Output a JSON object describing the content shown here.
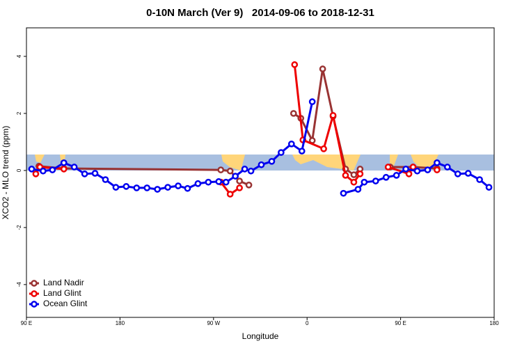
{
  "chart_data": {
    "type": "line",
    "title": "0-10N March (Ver 9)   2014-09-06 to 2018-12-31",
    "xlabel": "Longitude",
    "ylabel": "XCO2 - MLO trend (ppm)",
    "xlim": [
      90,
      540
    ],
    "xticks": [
      {
        "value": 90,
        "label": "90 E"
      },
      {
        "value": 180,
        "label": "180"
      },
      {
        "value": 270,
        "label": "90 W"
      },
      {
        "value": 360,
        "label": "0"
      },
      {
        "value": 450,
        "label": "90 E"
      },
      {
        "value": 540,
        "label": "180"
      }
    ],
    "ylim": [
      -5.15,
      5
    ],
    "yticks": [
      4,
      2,
      0,
      -2,
      -4
    ],
    "legend": "bottom-left",
    "series": [
      {
        "name": "Land Nadir",
        "color": "#993333",
        "x": [
          102,
          126,
          277,
          286,
          295,
          304,
          null,
          347,
          354,
          365,
          375,
          385,
          397,
          405,
          411,
          null,
          440,
          462,
          485
        ],
        "values": [
          0.15,
          0.07,
          0.02,
          -0.02,
          -0.37,
          -0.51,
          null,
          2.0,
          1.83,
          1.05,
          3.56,
          1.9,
          0.05,
          -0.15,
          0.05,
          null,
          0.12,
          0.12,
          0.07
        ]
      },
      {
        "name": "Land Glint",
        "color": "#ee0000",
        "x": [
          99,
          103,
          126,
          null,
          277,
          286,
          295,
          null,
          348,
          356,
          376,
          385,
          397,
          405,
          411,
          null,
          438,
          458,
          462,
          null,
          485
        ],
        "values": [
          -0.12,
          0.12,
          0.05,
          null,
          -0.41,
          -0.83,
          -0.61,
          null,
          3.71,
          1.07,
          0.76,
          1.93,
          -0.17,
          -0.41,
          -0.12,
          null,
          0.12,
          -0.12,
          0.12,
          null,
          0.02
        ]
      },
      {
        "name": "Ocean Glint",
        "color": "#0000ee",
        "x": [
          95,
          106,
          115,
          126,
          136,
          146,
          156,
          166,
          176,
          186,
          196,
          206,
          216,
          226,
          236,
          245,
          255,
          265,
          275,
          282,
          291,
          300,
          306,
          316,
          326,
          335,
          345,
          355,
          365,
          null,
          395,
          409,
          415,
          426,
          436,
          446,
          455,
          466,
          476,
          485,
          495,
          505,
          515,
          526,
          535
        ],
        "values": [
          0.05,
          -0.02,
          0.02,
          0.27,
          0.12,
          -0.12,
          -0.1,
          -0.32,
          -0.59,
          -0.56,
          -0.61,
          -0.61,
          -0.66,
          -0.59,
          -0.54,
          -0.63,
          -0.46,
          -0.41,
          -0.39,
          -0.41,
          -0.2,
          0.05,
          -0.02,
          0.2,
          0.32,
          0.63,
          0.93,
          0.68,
          2.41,
          null,
          -0.8,
          -0.66,
          -0.41,
          -0.37,
          -0.24,
          -0.17,
          0.05,
          -0.02,
          0.02,
          0.27,
          0.12,
          -0.12,
          -0.1,
          -0.32,
          -0.59
        ]
      }
    ]
  }
}
